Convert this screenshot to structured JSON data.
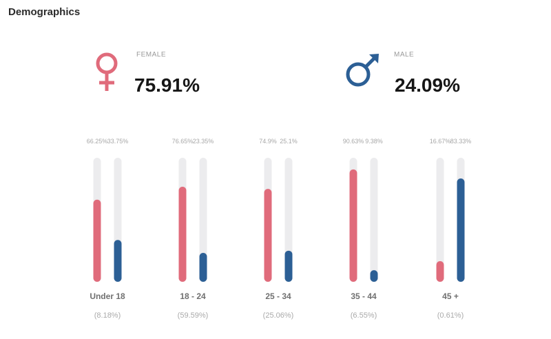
{
  "header": {
    "title": "Demographics"
  },
  "gender": {
    "female": {
      "label": "FEMALE",
      "value": "75.91%"
    },
    "male": {
      "label": "MALE",
      "value": "24.09%"
    }
  },
  "colors": {
    "female": "#e06b7b",
    "male": "#2c5f95",
    "track": "#ececee"
  },
  "chart_data": {
    "type": "bar",
    "title": "",
    "categories": [
      "Under 18",
      "18 - 24",
      "25 - 34",
      "35 - 44",
      "45 +"
    ],
    "category_shares": [
      "(8.18%)",
      "(59.59%)",
      "(25.06%)",
      "(6.55%)",
      "(0.61%)"
    ],
    "series": [
      {
        "name": "Female",
        "values": [
          66.25,
          76.65,
          74.9,
          90.63,
          16.67
        ],
        "value_labels": [
          "66.25%",
          "76.65%",
          "74.9%",
          "90.63%",
          "16.67%"
        ]
      },
      {
        "name": "Male",
        "values": [
          33.75,
          23.35,
          25.1,
          9.38,
          83.33
        ],
        "value_labels": [
          "33.75%",
          "23.35%",
          "25.1%",
          "9.38%",
          "83.33%"
        ]
      }
    ],
    "ylim": [
      0,
      100
    ],
    "xlabel": "",
    "ylabel": ""
  }
}
